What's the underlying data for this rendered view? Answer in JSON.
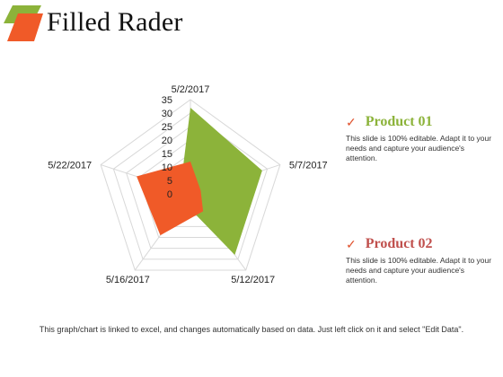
{
  "title": "Filled Rader",
  "colors": {
    "accent_green": "#8cb33a",
    "accent_orange": "#f05a28",
    "grid": "#d8d8d8"
  },
  "legend": [
    {
      "name": "Product 01",
      "color": "#8cb33a",
      "check": "✓",
      "description": "This slide is 100% editable. Adapt it to your needs and capture your audience's attention."
    },
    {
      "name": "Product 02",
      "color": "#c0504d",
      "check": "✓",
      "description": "This slide is 100% editable. Adapt it to your needs and capture your audience's attention."
    }
  ],
  "footer": "This graph/chart is linked to excel, and changes automatically based on data. Just left click on it and select \"Edit Data\".",
  "chart_data": {
    "type": "radar",
    "categories": [
      "5/2/2017",
      "5/7/2017",
      "5/12/2017",
      "5/16/2017",
      "5/22/2017"
    ],
    "radial_ticks": [
      0,
      5,
      10,
      15,
      20,
      25,
      30,
      35
    ],
    "rmax": 35,
    "filled": true,
    "series": [
      {
        "name": "Product 01",
        "color": "#8cb33a",
        "values": [
          32,
          28,
          28,
          4,
          4
        ]
      },
      {
        "name": "Product 02",
        "color": "#f05a28",
        "values": [
          12,
          4,
          8,
          19,
          21
        ]
      }
    ]
  }
}
